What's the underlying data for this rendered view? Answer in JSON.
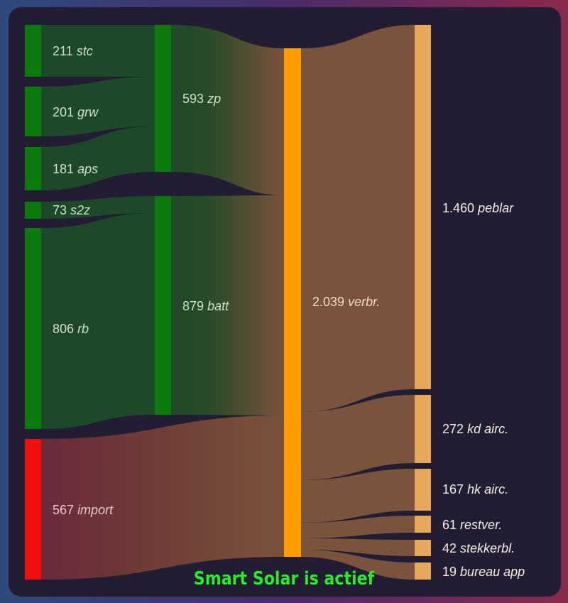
{
  "colors": {
    "source": "#0c7a0c",
    "import": "#f01010",
    "mid": "#0c7a0c",
    "total": "#ff9c00",
    "consumer": "#e8a85c",
    "status": "#22f02a"
  },
  "nodes": {
    "sources": [
      {
        "value": "211",
        "name": "stc"
      },
      {
        "value": "201",
        "name": "grw"
      },
      {
        "value": "181",
        "name": "aps"
      },
      {
        "value": "73",
        "name": "s2z"
      },
      {
        "value": "806",
        "name": "rb"
      },
      {
        "value": "567",
        "name": "import"
      }
    ],
    "groups": [
      {
        "value": "593",
        "name": "zp"
      },
      {
        "value": "879",
        "name": "batt"
      }
    ],
    "total": {
      "value": "2.039",
      "name": "verbr."
    },
    "consumers": [
      {
        "value": "1.460",
        "name": "peblar"
      },
      {
        "value": "272",
        "name": "kd airc."
      },
      {
        "value": "167",
        "name": "hk airc."
      },
      {
        "value": "61",
        "name": "restver."
      },
      {
        "value": "42",
        "name": "stekkerbl."
      },
      {
        "value": "19",
        "name": "bureau app"
      }
    ]
  },
  "status_text": "Smart Solar is actief"
}
